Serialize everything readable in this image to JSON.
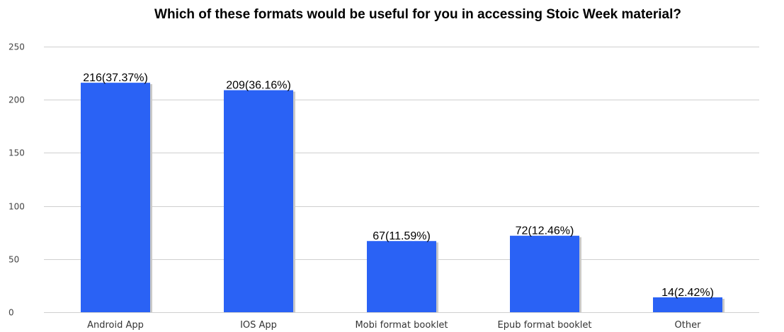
{
  "chart_data": {
    "type": "bar",
    "title": "Which of these formats would be useful for you in accessing Stoic Week material?",
    "xlabel": "",
    "ylabel": "",
    "categories": [
      "Android App",
      "IOS App",
      "Mobi format booklet",
      "Epub format booklet",
      "Other"
    ],
    "values": [
      216,
      209,
      67,
      72,
      14
    ],
    "data_labels": [
      "216(37.37%)",
      "209(36.16%)",
      "67(11.59%)",
      "72(12.46%)",
      "14(2.42%)"
    ],
    "ylim": [
      0,
      250
    ],
    "yticks": [
      0,
      50,
      100,
      150,
      200,
      250
    ],
    "grid": true,
    "legend": "none",
    "colors": {
      "bar": "#2a62f5",
      "bar_shadow": "#c9c9c9",
      "grid": "#cfcfcf"
    }
  }
}
